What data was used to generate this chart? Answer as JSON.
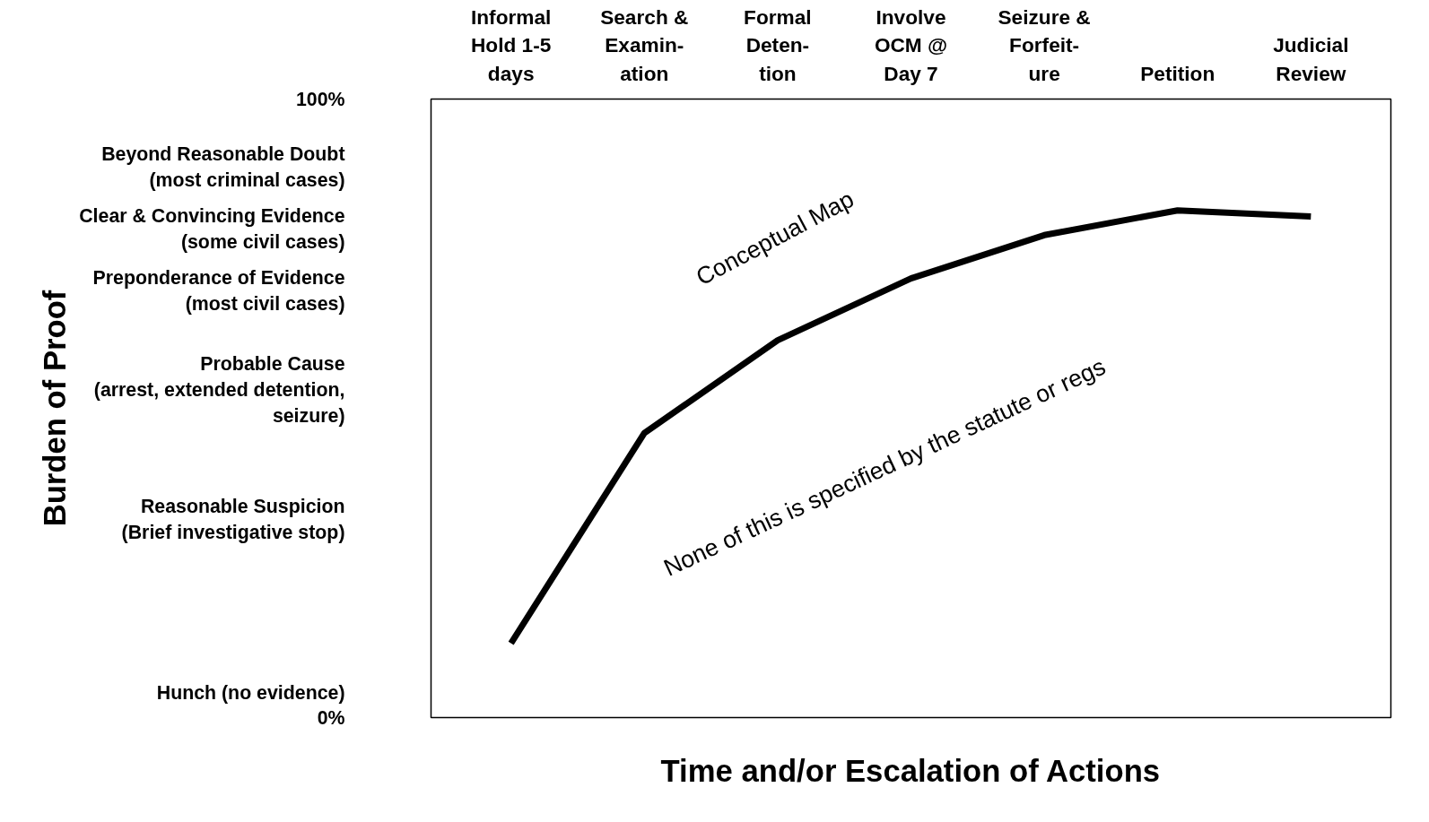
{
  "chart_data": {
    "type": "line",
    "categories": [
      "Informal\nHold 1-5\ndays",
      "Search &\nExamin-\nation",
      "Formal\nDeten-\ntion",
      "Involve\nOCM @\nDay 7",
      "Seizure &\nForfeit-\nure",
      "Petition",
      "Judicial\nReview"
    ],
    "series": [
      {
        "color": "#000000",
        "values": [
          12,
          46,
          61,
          71,
          78,
          82,
          81
        ]
      }
    ],
    "ylim": [
      0,
      100
    ],
    "yticks": [
      {
        "value": 0,
        "label": "0%"
      },
      {
        "value": 4,
        "label": "Hunch (no evidence)"
      },
      {
        "value": 32,
        "label": "Reasonable Suspicion\n(Brief investigative stop)"
      },
      {
        "value": 53,
        "label": "Probable Cause\n(arrest, extended detention,\nseizure)"
      },
      {
        "value": 69,
        "label": "Preponderance of Evidence\n(most civil cases)"
      },
      {
        "value": 79,
        "label": "Clear & Convincing Evidence\n(some civil cases)"
      },
      {
        "value": 89,
        "label": "Beyond Reasonable Doubt\n(most criminal cases)"
      },
      {
        "value": 100,
        "label": "100%"
      }
    ],
    "xlabel": "Time and/or Escalation of Actions",
    "ylabel": "Burden of Proof",
    "annotations": [
      "Conceptual Map",
      "None of this is specified by the statute or regs"
    ],
    "grid": false,
    "marker": "none",
    "line_style": "solid"
  }
}
